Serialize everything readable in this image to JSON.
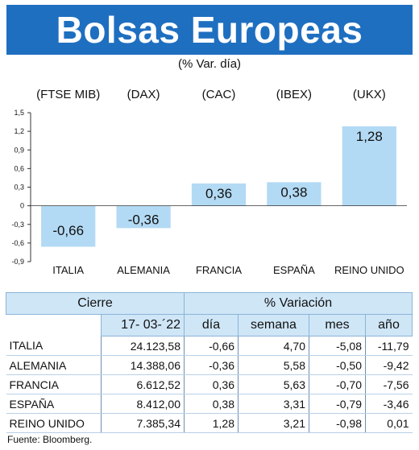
{
  "title": "Bolsas Europeas",
  "subtitle": "(% Var. día)",
  "chart_data": {
    "type": "bar",
    "indices": [
      "(FTSE MIB)",
      "(DAX)",
      "(CAC)",
      "(IBEX)",
      "(UKX)"
    ],
    "categories": [
      "ITALIA",
      "ALEMANIA",
      "FRANCIA",
      "ESPAÑA",
      "REINO UNIDO"
    ],
    "values": [
      -0.66,
      -0.36,
      0.36,
      0.38,
      1.28
    ],
    "value_labels": [
      "-0,66",
      "-0,36",
      "0,36",
      "0,38",
      "1,28"
    ],
    "yticks": [
      1.5,
      1.2,
      0.9,
      0.6,
      0.3,
      0,
      -0.3,
      -0.6,
      -0.9
    ],
    "ytick_labels": [
      "1,5",
      "1,2",
      "0,9",
      "0,6",
      "0,3",
      "0",
      "-0,3",
      "-0,6",
      "-0,9"
    ],
    "ylim": [
      -0.9,
      1.5
    ],
    "bar_color": "#b3daf4"
  },
  "table": {
    "header_cierre": "Cierre",
    "header_variacion": "% Variación",
    "date": "17- 03-´22",
    "cols": [
      "día",
      "semana",
      "mes",
      "año"
    ],
    "rows": [
      {
        "name": "ITALIA",
        "cierre": "24.123,58",
        "dia": "-0,66",
        "semana": "4,70",
        "mes": "-5,08",
        "anio": "-11,79"
      },
      {
        "name": "ALEMANIA",
        "cierre": "14.388,06",
        "dia": "-0,36",
        "semana": "5,58",
        "mes": "-0,50",
        "anio": "-9,42"
      },
      {
        "name": "FRANCIA",
        "cierre": "6.612,52",
        "dia": "0,36",
        "semana": "5,63",
        "mes": "-0,70",
        "anio": "-7,56"
      },
      {
        "name": "ESPAÑA",
        "cierre": "8.412,00",
        "dia": "0,38",
        "semana": "3,31",
        "mes": "-0,79",
        "anio": "-3,46"
      },
      {
        "name": "REINO UNIDO",
        "cierre": "7.385,34",
        "dia": "1,28",
        "semana": "3,21",
        "mes": "-0,98",
        "anio": "0,01"
      }
    ]
  },
  "source": "Fuente: Bloomberg."
}
